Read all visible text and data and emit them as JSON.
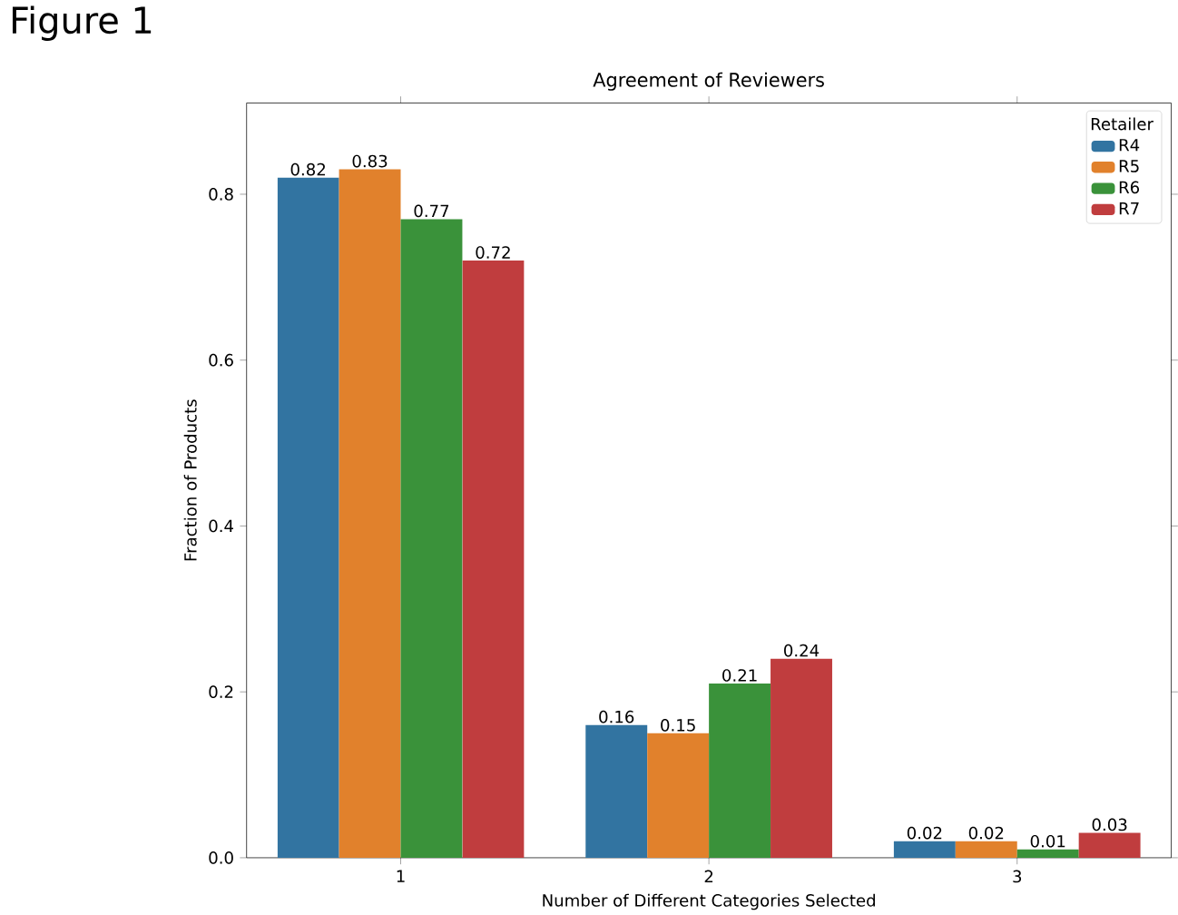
{
  "chart_data": {
    "type": "bar",
    "title": "Agreement of Reviewers",
    "xlabel": "Number of Different Categories Selected",
    "ylabel": "Fraction of Products",
    "legend_title": "Retailer",
    "annotations": [
      "Figure 1"
    ],
    "categories": [
      "1",
      "2",
      "3"
    ],
    "series": [
      {
        "name": "R4",
        "color": "#3274a1",
        "values": [
          0.82,
          0.16,
          0.02
        ]
      },
      {
        "name": "R5",
        "color": "#e1812c",
        "values": [
          0.83,
          0.15,
          0.02
        ]
      },
      {
        "name": "R6",
        "color": "#3a923a",
        "values": [
          0.77,
          0.21,
          0.01
        ]
      },
      {
        "name": "R7",
        "color": "#c03d3e",
        "values": [
          0.72,
          0.24,
          0.03
        ]
      }
    ],
    "ylim": [
      0,
      0.91
    ],
    "yticks": [
      {
        "value": 0,
        "label": "0.0"
      },
      {
        "value": 0.2,
        "label": "0.2"
      },
      {
        "value": 0.4,
        "label": "0.4"
      },
      {
        "value": 0.6,
        "label": "0.6"
      },
      {
        "value": 0.8,
        "label": "0.8"
      }
    ],
    "data_labels": true,
    "grid": false,
    "legend": "top right"
  }
}
